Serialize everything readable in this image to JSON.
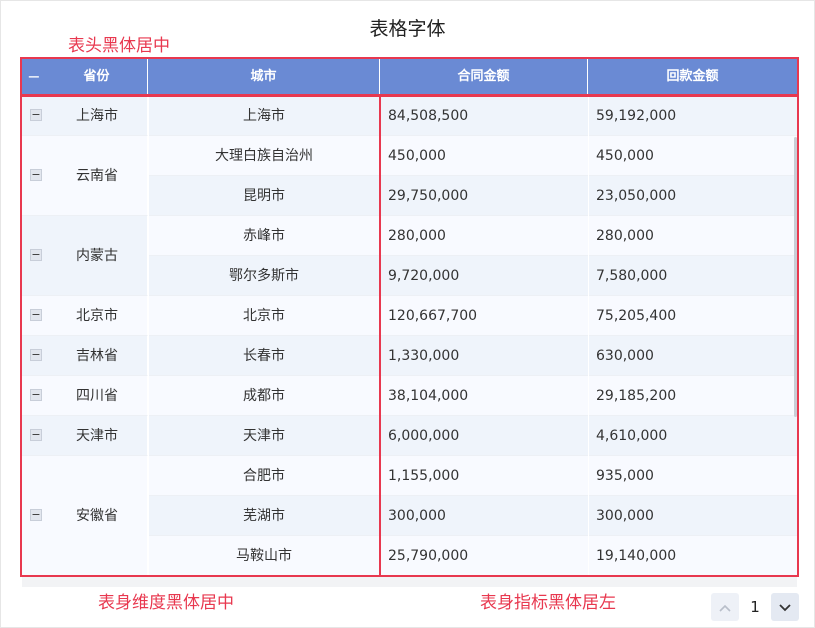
{
  "title": "表格字体",
  "annotations": {
    "header": "表头黑体居中",
    "dimension": "表身维度黑体居中",
    "metric": "表身指标黑体居左"
  },
  "table": {
    "collapse_symbol": "−",
    "columns": [
      "省份",
      "城市",
      "合同金额",
      "回款金额"
    ],
    "groups": [
      {
        "province": "上海市",
        "rows": [
          {
            "city": "上海市",
            "contract": "84,508,500",
            "repay": "59,192,000"
          }
        ]
      },
      {
        "province": "云南省",
        "rows": [
          {
            "city": "大理白族自治州",
            "contract": "450,000",
            "repay": "450,000"
          },
          {
            "city": "昆明市",
            "contract": "29,750,000",
            "repay": "23,050,000"
          }
        ]
      },
      {
        "province": "内蒙古",
        "rows": [
          {
            "city": "赤峰市",
            "contract": "280,000",
            "repay": "280,000"
          },
          {
            "city": "鄂尔多斯市",
            "contract": "9,720,000",
            "repay": "7,580,000"
          }
        ]
      },
      {
        "province": "北京市",
        "rows": [
          {
            "city": "北京市",
            "contract": "120,667,700",
            "repay": "75,205,400"
          }
        ]
      },
      {
        "province": "吉林省",
        "rows": [
          {
            "city": "长春市",
            "contract": "1,330,000",
            "repay": "630,000"
          }
        ]
      },
      {
        "province": "四川省",
        "rows": [
          {
            "city": "成都市",
            "contract": "38,104,000",
            "repay": "29,185,200"
          }
        ]
      },
      {
        "province": "天津市",
        "rows": [
          {
            "city": "天津市",
            "contract": "6,000,000",
            "repay": "4,610,000"
          }
        ]
      },
      {
        "province": "安徽省",
        "rows": [
          {
            "city": "合肥市",
            "contract": "1,155,000",
            "repay": "935,000"
          },
          {
            "city": "芜湖市",
            "contract": "300,000",
            "repay": "300,000"
          },
          {
            "city": "马鞍山市",
            "contract": "25,790,000",
            "repay": "19,140,000"
          }
        ]
      }
    ]
  },
  "pager": {
    "current_page": "1",
    "prev_icon": "chevron-up-icon",
    "next_icon": "chevron-down-icon"
  },
  "colors": {
    "header_bg": "#6a8ad4",
    "highlight": "#e8384f",
    "row_odd": "#eff4fb",
    "row_even": "#f8faff"
  }
}
